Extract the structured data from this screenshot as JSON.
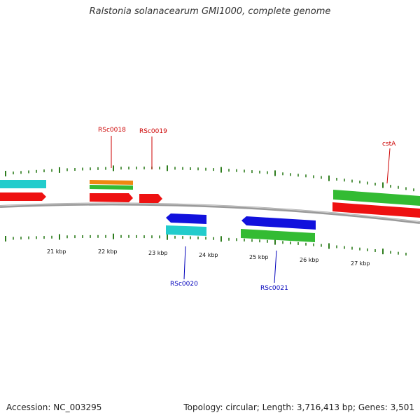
{
  "title": "Ralstonia solanacearum GMI1000, complete genome",
  "footer": {
    "accession": "Accession: NC_003295",
    "summary": "Topology: circular; Length: 3,716,413 bp; Genes: 3,501"
  },
  "colors": {
    "backbone": "#8a8a8a",
    "tick": "#2e7d1e",
    "forward_label": "#cc0000",
    "reverse_label": "#0000bb",
    "red": "#ee1111",
    "green": "#33bb33",
    "cyan": "#22cccc",
    "blue": "#1111dd",
    "orange": "#ee8811"
  },
  "scale_labels": [
    "21 kbp",
    "22 kbp",
    "23 kbp",
    "24 kbp",
    "25 kbp",
    "26 kbp",
    "27 kbp"
  ],
  "gene_labels": [
    {
      "text": "RSc0018",
      "strand": "forward"
    },
    {
      "text": "RSc0019",
      "strand": "forward"
    },
    {
      "text": "cstA",
      "strand": "forward"
    },
    {
      "text": "RSc0020",
      "strand": "reverse"
    },
    {
      "text": "RSc0021",
      "strand": "reverse"
    }
  ]
}
